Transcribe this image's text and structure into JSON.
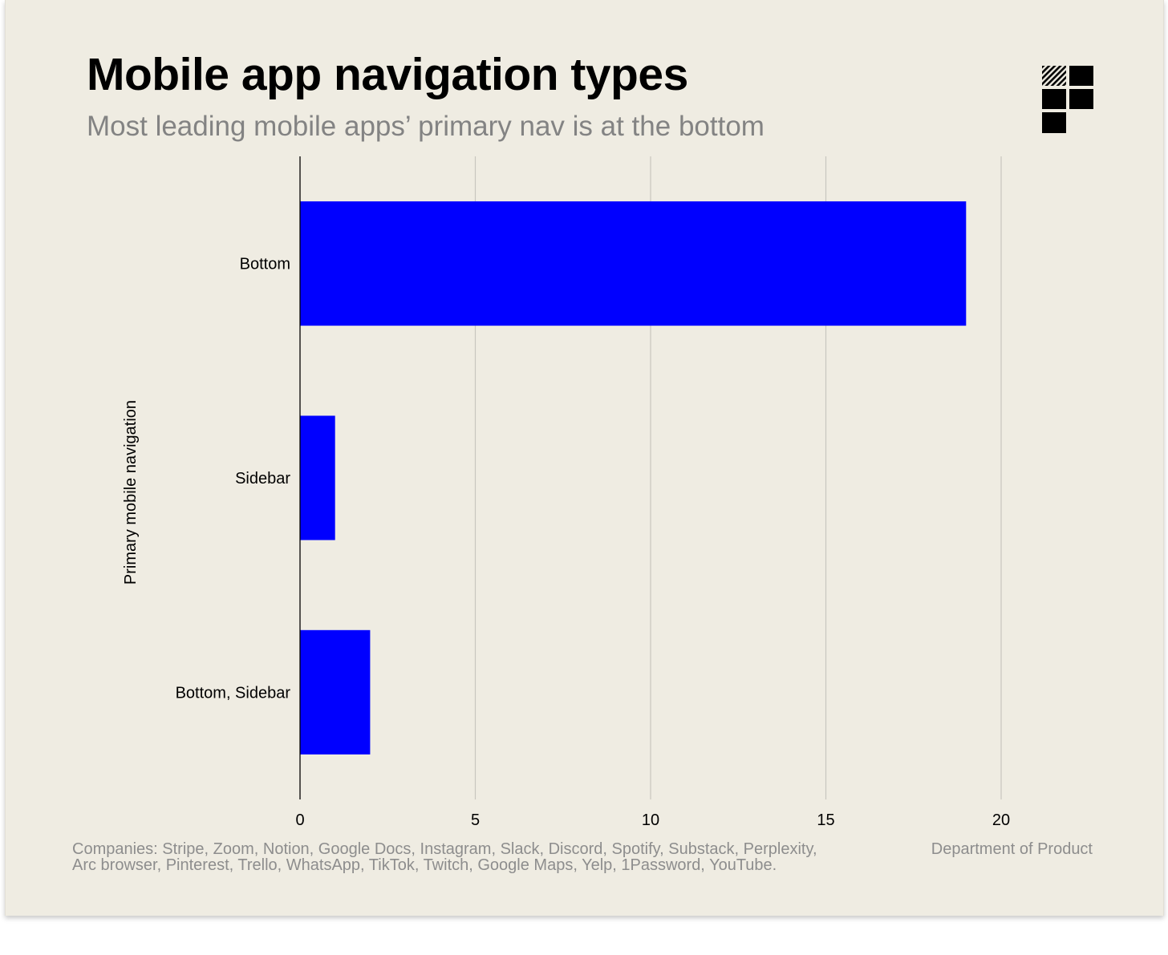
{
  "header": {
    "title": "Mobile app navigation types",
    "subtitle": "Most leading mobile apps’ primary nav is at the bottom"
  },
  "footer": {
    "companies_note": "Companies: Stripe, Zoom, Notion, Google Docs, Instagram, Slack, Discord, Spotify, Substack, Perplexity, Arc browser, Pinterest, Trello, WhatsApp, TikTok, Twitch, Google Maps, Yelp, 1Password, YouTube.",
    "source": "Department of Product"
  },
  "colors": {
    "bar": "#0000ff",
    "background": "#efece2",
    "gridline": "#c8c6bf",
    "axis": "#000000"
  },
  "chart_data": {
    "type": "bar",
    "orientation": "horizontal",
    "title": "Mobile app navigation types",
    "subtitle": "Most leading mobile apps’ primary nav is at the bottom",
    "categories": [
      "Bottom",
      "Sidebar",
      "Bottom, Sidebar"
    ],
    "values": [
      19,
      1,
      2
    ],
    "xlabel": "",
    "ylabel": "Primary mobile navigation",
    "xlim": [
      0,
      20
    ],
    "xticks": [
      "0",
      "5",
      "10",
      "15",
      "20"
    ],
    "xtick_values": [
      0,
      5,
      10,
      15,
      20
    ],
    "grid": "vertical",
    "legend": "none"
  }
}
